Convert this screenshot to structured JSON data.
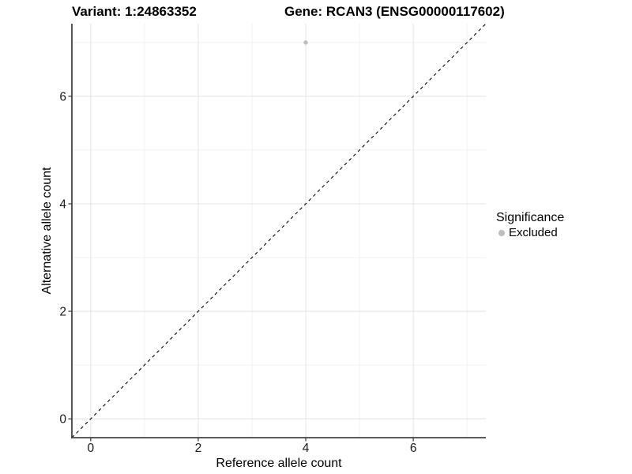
{
  "header": {
    "variant_title": "Variant: 1:24863352",
    "gene_title": "Gene: RCAN3 (ENSG00000117602)"
  },
  "chart_data": {
    "type": "scatter",
    "title": "Variant: 1:24863352   Gene: RCAN3 (ENSG00000117602)",
    "xlabel": "Reference allele count",
    "ylabel": "Alternative allele count",
    "xlim": [
      -0.35,
      7.35
    ],
    "ylim": [
      -0.35,
      7.35
    ],
    "x_major_ticks": [
      0,
      2,
      4,
      6
    ],
    "y_major_ticks": [
      0,
      2,
      4,
      6
    ],
    "x_minor_ticks": [
      1,
      3,
      5,
      7
    ],
    "y_minor_ticks": [
      1,
      3,
      5,
      7
    ],
    "grid": "on",
    "identity_line": {
      "type": "y=x",
      "style": "dashed",
      "color": "#000000",
      "from": -0.35,
      "to": 7.35
    },
    "series": [
      {
        "name": "Excluded",
        "color": "#bebebe",
        "points": [
          [
            4,
            7
          ]
        ]
      }
    ],
    "legend": {
      "title": "Significance",
      "position": "right",
      "items": [
        {
          "label": "Excluded",
          "color": "#bebebe"
        }
      ]
    }
  },
  "colors": {
    "background": "#ffffff",
    "grid_major": "#e4e4e4",
    "grid_minor": "#f1f1f1",
    "axis_line": "#444444",
    "tick_mark": "#333333",
    "tick_label": "#1a1a1a",
    "text": "#000000"
  }
}
